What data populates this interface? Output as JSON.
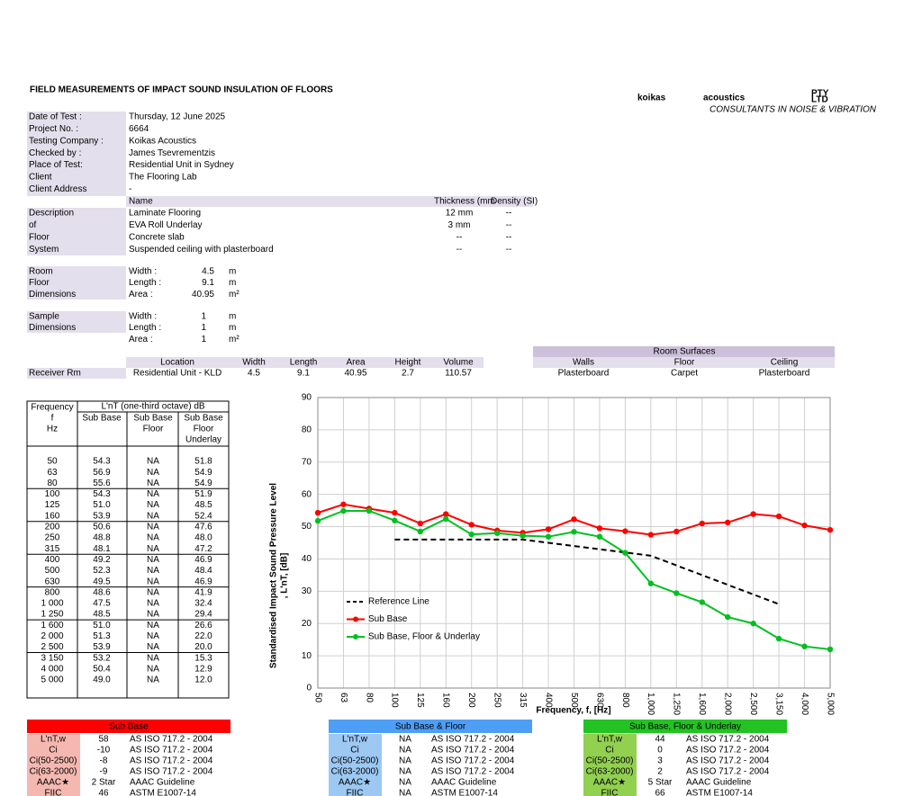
{
  "header": {
    "title": "FIELD MEASUREMENTS OF IMPACT SOUND INSULATION OF FLOORS",
    "logo": {
      "brand": "koikas",
      "brand2": "acoustics",
      "suffix": [
        "PTY",
        "LTD"
      ],
      "tagline": "CONSULTANTS IN NOISE & VIBRATION"
    }
  },
  "info": [
    {
      "label": "Date of Test :",
      "value": "Thursday, 12 June 2025"
    },
    {
      "label": "Project No. :",
      "value": "6664"
    },
    {
      "label": "Testing Company :",
      "value": "Koikas Acoustics"
    },
    {
      "label": "Checked by :",
      "value": "James Tsevrementzis"
    },
    {
      "label": "Place of Test:",
      "value": "Residential Unit in Sydney"
    },
    {
      "label": "Client",
      "value": "The Flooring Lab"
    },
    {
      "label": "Client Address",
      "value": "-"
    }
  ],
  "materials": {
    "columns": [
      "Name",
      "Thickness (mm",
      "Density (SI)"
    ],
    "labels": [
      "Description",
      "of",
      "Floor",
      "System"
    ],
    "rows": [
      [
        "Laminate Flooring",
        "12 mm",
        "--"
      ],
      [
        "EVA Roll Underlay",
        "3 mm",
        "--"
      ],
      [
        "Concrete slab",
        "--",
        "--"
      ],
      [
        "Suspended ceiling with plasterboard",
        "--",
        "--"
      ]
    ]
  },
  "room": {
    "labels": [
      "Room",
      "Floor",
      "Dimensions"
    ],
    "rows": [
      [
        "Width :",
        "4.5",
        "m"
      ],
      [
        "Length :",
        "9.1",
        "m"
      ],
      [
        "Area :",
        "40.95",
        "m²"
      ]
    ]
  },
  "sample": {
    "labels": [
      "Sample",
      "Dimensions"
    ],
    "rows": [
      [
        "Width :",
        "1",
        "m"
      ],
      [
        "Length :",
        "1",
        "m"
      ],
      [
        "Area :",
        "1",
        "m²"
      ]
    ]
  },
  "location": {
    "columns": [
      "Location",
      "Width",
      "Length",
      "Area",
      "Height",
      "Volume"
    ],
    "row_label": "Receiver Rm",
    "row": [
      "Residential Unit - KLD",
      "4.5",
      "9.1",
      "40.95",
      "2.7",
      "110.57"
    ]
  },
  "surfaces": {
    "title": "Room Surfaces",
    "columns": [
      "Walls",
      "Floor",
      "Ceiling"
    ],
    "row": [
      "Plasterboard",
      "Carpet",
      "Plasterboard"
    ]
  },
  "freq_table": {
    "freq_header": [
      "Frequency",
      "f",
      "Hz"
    ],
    "group": "L'nT (one-third octave) dB",
    "cols": [
      [
        "Sub Base"
      ],
      [
        "Sub Base",
        "Floor"
      ],
      [
        "Sub Base",
        "Floor",
        "Underlay"
      ]
    ],
    "rows": [
      [
        "50",
        "54.3",
        "NA",
        "51.8"
      ],
      [
        "63",
        "56.9",
        "NA",
        "54.9"
      ],
      [
        "80",
        "55.6",
        "NA",
        "54.9"
      ],
      [
        "100",
        "54.3",
        "NA",
        "51.9"
      ],
      [
        "125",
        "51.0",
        "NA",
        "48.5"
      ],
      [
        "160",
        "53.9",
        "NA",
        "52.4"
      ],
      [
        "200",
        "50.6",
        "NA",
        "47.6"
      ],
      [
        "250",
        "48.8",
        "NA",
        "48.0"
      ],
      [
        "315",
        "48.1",
        "NA",
        "47.2"
      ],
      [
        "400",
        "49.2",
        "NA",
        "46.9"
      ],
      [
        "500",
        "52.3",
        "NA",
        "48.4"
      ],
      [
        "630",
        "49.5",
        "NA",
        "46.9"
      ],
      [
        "800",
        "48.6",
        "NA",
        "41.9"
      ],
      [
        "1 000",
        "47.5",
        "NA",
        "32.4"
      ],
      [
        "1 250",
        "48.5",
        "NA",
        "29.4"
      ],
      [
        "1 600",
        "51.0",
        "NA",
        "26.6"
      ],
      [
        "2 000",
        "51.3",
        "NA",
        "22.0"
      ],
      [
        "2 500",
        "53.9",
        "NA",
        "20.0"
      ],
      [
        "3 150",
        "53.2",
        "NA",
        "15.3"
      ],
      [
        "4 000",
        "50.4",
        "NA",
        "12.9"
      ],
      [
        "5 000",
        "49.0",
        "NA",
        "12.0"
      ]
    ]
  },
  "chart_data": {
    "type": "line",
    "x_label": "Frequency, f, [Hz]",
    "y_label": [
      "Standardised Impact Sound Pressure Level",
      ", L'nT, [dB]"
    ],
    "categories": [
      "50",
      "63",
      "80",
      "100",
      "125",
      "160",
      "200",
      "250",
      "315",
      "400",
      "500",
      "630",
      "800",
      "1,000",
      "1,250",
      "1,600",
      "2,000",
      "2,500",
      "3,150",
      "4,000",
      "5,000"
    ],
    "ylim": [
      0,
      90
    ],
    "yticks": [
      0,
      10,
      20,
      30,
      40,
      50,
      60,
      70,
      80,
      90
    ],
    "grid": true,
    "series": [
      {
        "name": "Reference Line",
        "color": "#000000",
        "dashed": true,
        "marker": false,
        "values": [
          null,
          null,
          null,
          46,
          46,
          46,
          46,
          46,
          46,
          45,
          44,
          43,
          42,
          41,
          38,
          35,
          32,
          29,
          26,
          null,
          null
        ]
      },
      {
        "name": "Sub Base",
        "color": "#ff0000",
        "dashed": false,
        "marker": true,
        "values": [
          54.3,
          56.9,
          55.6,
          54.3,
          51.0,
          53.9,
          50.6,
          48.8,
          48.1,
          49.2,
          52.3,
          49.5,
          48.6,
          47.5,
          48.5,
          51.0,
          51.3,
          53.9,
          53.2,
          50.4,
          49.0
        ]
      },
      {
        "name": "Sub Base, Floor & Underlay",
        "color": "#00c020",
        "dashed": false,
        "marker": true,
        "values": [
          51.8,
          54.9,
          54.9,
          51.9,
          48.5,
          52.4,
          47.6,
          48.0,
          47.2,
          46.9,
          48.4,
          46.9,
          41.9,
          32.4,
          29.4,
          26.6,
          22.0,
          20.0,
          15.3,
          12.9,
          12.0
        ]
      }
    ]
  },
  "ratings": [
    {
      "title": "Sub Base",
      "color": "#ff0000",
      "label_color": "#f4b8b0",
      "rows": [
        [
          "L'nT,w",
          "58",
          "AS ISO 717.2 - 2004"
        ],
        [
          "Ci",
          "-10",
          "AS ISO 717.2 - 2004"
        ],
        [
          "Ci(50-2500)",
          "-8",
          "AS ISO 717.2 - 2004"
        ],
        [
          "Ci(63-2000)",
          "-9",
          "AS ISO 717.2 - 2004"
        ],
        [
          "AAAC★",
          "2 Star",
          "AAAC Guideline"
        ],
        [
          "FIIC",
          "46",
          "ASTM E1007-14"
        ]
      ]
    },
    {
      "title": "Sub Base & Floor",
      "color": "#4d9ef5",
      "label_color": "#9cc8f2",
      "rows": [
        [
          "L'nT,w",
          "NA",
          "AS ISO 717.2 - 2004"
        ],
        [
          "Ci",
          "NA",
          "AS ISO 717.2 - 2004"
        ],
        [
          "Ci(50-2500)",
          "NA",
          "AS ISO 717.2 - 2004"
        ],
        [
          "Ci(63-2000)",
          "NA",
          "AS ISO 717.2 - 2004"
        ],
        [
          "AAAC★",
          "NA",
          "AAAC Guideline"
        ],
        [
          "FIIC",
          "NA",
          "ASTM E1007-14"
        ]
      ]
    },
    {
      "title": "Sub Base, Floor & Underlay",
      "color": "#22c322",
      "label_color": "#92d050",
      "rows": [
        [
          "L'nT,w",
          "44",
          "AS ISO 717.2 - 2004"
        ],
        [
          "Ci",
          "0",
          "AS ISO 717.2 - 2004"
        ],
        [
          "Ci(50-2500)",
          "3",
          "AS ISO 717.2 - 2004"
        ],
        [
          "Ci(63-2000)",
          "2",
          "AS ISO 717.2 - 2004"
        ],
        [
          "AAAC★",
          "5 Star",
          "AAAC Guideline"
        ],
        [
          "FIIC",
          "66",
          "ASTM E1007-14"
        ]
      ]
    }
  ]
}
